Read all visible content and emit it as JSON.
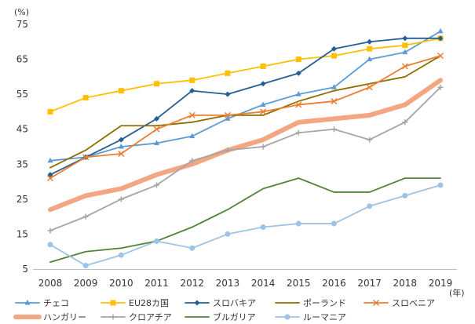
{
  "chart_data": {
    "type": "line",
    "title": "",
    "xlabel": "",
    "ylabel": "",
    "y_unit": "(%)",
    "x_unit": "(年)",
    "x": [
      "2008",
      "2009",
      "2010",
      "2011",
      "2012",
      "2013",
      "2014",
      "2015",
      "2016",
      "2017",
      "2018",
      "2019"
    ],
    "y_ticks": [
      5,
      15,
      25,
      35,
      45,
      55,
      65,
      75
    ],
    "ylim": [
      5,
      75
    ],
    "grid": false,
    "legend_position": "bottom",
    "series": [
      {
        "name": "チェコ",
        "color": "#5b9bd5",
        "marker": "triangle",
        "values": [
          36,
          37,
          40,
          41,
          43,
          48,
          52,
          55,
          57,
          65,
          67,
          73
        ]
      },
      {
        "name": "EU28カ国",
        "color": "#ffc000",
        "marker": "square",
        "values": [
          50,
          54,
          56,
          58,
          59,
          61,
          63,
          65,
          66,
          68,
          69,
          71
        ]
      },
      {
        "name": "スロバキア",
        "color": "#255e91",
        "marker": "diamond",
        "values": [
          32,
          37,
          42,
          48,
          56,
          55,
          58,
          61,
          68,
          70,
          71,
          71
        ]
      },
      {
        "name": "ポーランド",
        "color": "#8c6d00",
        "marker": "line",
        "values": [
          34,
          39,
          46,
          46,
          47,
          49,
          49,
          53,
          56,
          58,
          60,
          66
        ]
      },
      {
        "name": "スロベニア",
        "color": "#ed7d31",
        "marker": "x",
        "values": [
          31,
          37,
          38,
          45,
          49,
          49,
          50,
          52,
          53,
          57,
          63,
          66
        ]
      },
      {
        "name": "ハンガリー",
        "color": "#f4a582",
        "marker": "none",
        "thick": true,
        "values": [
          22,
          26,
          28,
          32,
          35,
          39,
          42,
          47,
          48,
          49,
          52,
          59
        ]
      },
      {
        "name": "クロアチア",
        "color": "#a5a5a5",
        "marker": "plus",
        "values": [
          16,
          20,
          25,
          29,
          36,
          39,
          40,
          44,
          45,
          42,
          47,
          57
        ]
      },
      {
        "name": "ブルガリア",
        "color": "#548235",
        "marker": "line",
        "values": [
          7,
          10,
          11,
          13,
          17,
          22,
          28,
          31,
          27,
          27,
          31,
          31
        ]
      },
      {
        "name": "ルーマニア",
        "color": "#9dc3e6",
        "marker": "circle",
        "values": [
          12,
          6,
          9,
          13,
          11,
          15,
          17,
          18,
          18,
          23,
          26,
          29
        ]
      }
    ]
  }
}
